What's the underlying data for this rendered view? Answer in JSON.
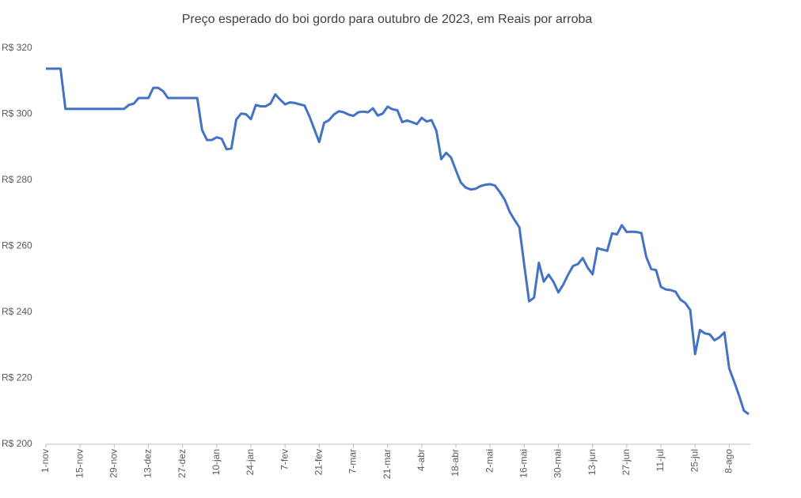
{
  "chart_data": {
    "type": "line",
    "title": "Preço esperado do boi gordo para  outubro de 2023, em Reais por arroba",
    "categories": [
      "1-nov",
      null,
      null,
      null,
      null,
      null,
      null,
      "15-nov",
      null,
      null,
      null,
      null,
      null,
      null,
      "29-nov",
      null,
      null,
      null,
      null,
      null,
      null,
      "13-dez",
      null,
      null,
      null,
      null,
      null,
      null,
      "27-dez",
      null,
      null,
      null,
      null,
      null,
      null,
      "10-jan",
      null,
      null,
      null,
      null,
      null,
      null,
      "24-jan",
      null,
      null,
      null,
      null,
      null,
      null,
      "7-fev",
      null,
      null,
      null,
      null,
      null,
      null,
      "21-fev",
      null,
      null,
      null,
      null,
      null,
      null,
      "7-mar",
      null,
      null,
      null,
      null,
      null,
      null,
      "21-mar",
      null,
      null,
      null,
      null,
      null,
      null,
      "4-abr",
      null,
      null,
      null,
      null,
      null,
      null,
      "18-abr",
      null,
      null,
      null,
      null,
      null,
      null,
      "2-mai",
      null,
      null,
      null,
      null,
      null,
      null,
      "16-mai",
      null,
      null,
      null,
      null,
      null,
      null,
      "30-mai",
      null,
      null,
      null,
      null,
      null,
      null,
      "13-jun",
      null,
      null,
      null,
      null,
      null,
      null,
      "27-jun",
      null,
      null,
      null,
      null,
      null,
      null,
      "11-jul",
      null,
      null,
      null,
      null,
      null,
      null,
      "25-jul",
      null,
      null,
      null,
      null,
      null,
      null,
      "8-ago",
      null,
      null,
      null,
      null
    ],
    "values": [
      313.8,
      313.8,
      313.8,
      313.8,
      301.6,
      301.6,
      301.6,
      301.6,
      301.6,
      301.6,
      301.6,
      301.6,
      301.6,
      301.6,
      301.6,
      301.6,
      301.6,
      302.8,
      303.2,
      304.9,
      304.9,
      304.9,
      308.0,
      308.0,
      307.0,
      304.9,
      304.9,
      304.9,
      304.9,
      304.9,
      304.9,
      304.9,
      295.2,
      292.2,
      292.2,
      293.0,
      292.6,
      289.4,
      289.6,
      298.4,
      300.2,
      300.0,
      298.5,
      302.8,
      302.4,
      302.4,
      303.2,
      306.0,
      304.4,
      303.0,
      303.6,
      303.4,
      303.0,
      302.6,
      299.3,
      295.4,
      291.6,
      297.4,
      298.2,
      299.9,
      300.9,
      300.6,
      299.9,
      299.5,
      300.6,
      300.8,
      300.6,
      301.8,
      299.6,
      300.2,
      302.3,
      301.5,
      301.2,
      297.6,
      298.1,
      297.6,
      297.0,
      298.9,
      297.8,
      298.2,
      295.0,
      286.4,
      288.3,
      286.9,
      283.0,
      279.3,
      277.8,
      277.2,
      277.4,
      278.2,
      278.6,
      278.8,
      278.4,
      276.4,
      274.1,
      270.5,
      268.0,
      265.7,
      254.4,
      243.3,
      244.4,
      255.0,
      249.3,
      251.4,
      249.2,
      246.0,
      248.4,
      251.4,
      254.0,
      254.6,
      256.4,
      253.5,
      251.5,
      259.4,
      259.0,
      258.6,
      263.9,
      263.6,
      266.4,
      264.3,
      264.4,
      264.3,
      264.0,
      256.8,
      253.1,
      252.8,
      247.7,
      246.9,
      246.7,
      246.2,
      243.8,
      242.8,
      240.7,
      227.3,
      234.6,
      233.6,
      233.3,
      231.5,
      232.4,
      233.9,
      223.0,
      219.0,
      214.8,
      210.2,
      209.1
    ],
    "color": "#4472c4",
    "ylim": [
      200,
      320
    ],
    "yticks": [
      {
        "value": 200,
        "label": "R$ 200"
      },
      {
        "value": 220,
        "label": "R$ 220"
      },
      {
        "value": 240,
        "label": "R$ 240"
      },
      {
        "value": 260,
        "label": "R$ 260"
      },
      {
        "value": 280,
        "label": "R$ 280"
      },
      {
        "value": 300,
        "label": "R$ 300"
      },
      {
        "value": 320,
        "label": "R$ 320"
      }
    ],
    "grid": false
  }
}
